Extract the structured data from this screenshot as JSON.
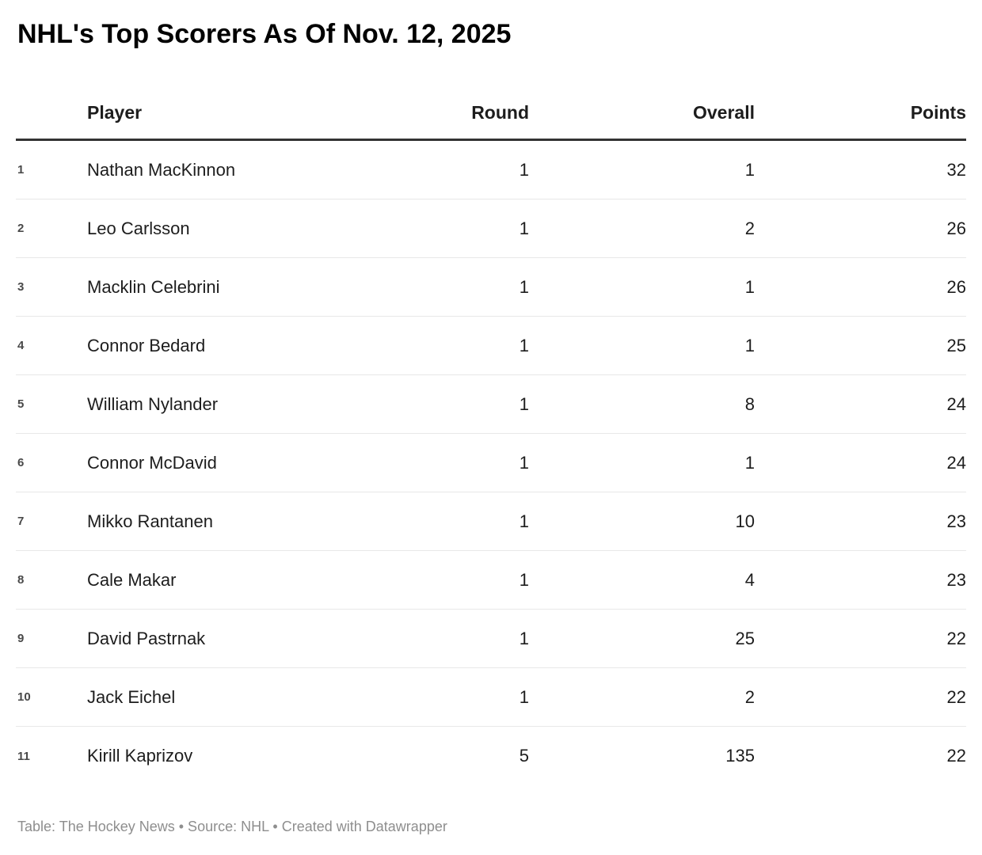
{
  "title": "NHL's Top Scorers As Of Nov. 12, 2025",
  "chart_data": {
    "type": "table",
    "title": "NHL's Top Scorers As Of Nov. 12, 2025",
    "columns": {
      "rank": "",
      "player": "Player",
      "round": "Round",
      "overall": "Overall",
      "points": "Points"
    },
    "rows": [
      {
        "rank": "1",
        "player": "Nathan MacKinnon",
        "round": "1",
        "overall": "1",
        "points": "32"
      },
      {
        "rank": "2",
        "player": "Leo Carlsson",
        "round": "1",
        "overall": "2",
        "points": "26"
      },
      {
        "rank": "3",
        "player": "Macklin Celebrini",
        "round": "1",
        "overall": "1",
        "points": "26"
      },
      {
        "rank": "4",
        "player": "Connor Bedard",
        "round": "1",
        "overall": "1",
        "points": "25"
      },
      {
        "rank": "5",
        "player": "William Nylander",
        "round": "1",
        "overall": "8",
        "points": "24"
      },
      {
        "rank": "6",
        "player": "Connor McDavid",
        "round": "1",
        "overall": "1",
        "points": "24"
      },
      {
        "rank": "7",
        "player": "Mikko Rantanen",
        "round": "1",
        "overall": "10",
        "points": "23"
      },
      {
        "rank": "8",
        "player": "Cale Makar",
        "round": "1",
        "overall": "4",
        "points": "23"
      },
      {
        "rank": "9",
        "player": "David Pastrnak",
        "round": "1",
        "overall": "25",
        "points": "22"
      },
      {
        "rank": "10",
        "player": "Jack Eichel",
        "round": "1",
        "overall": "2",
        "points": "22"
      },
      {
        "rank": "11",
        "player": "Kirill Kaprizov",
        "round": "5",
        "overall": "135",
        "points": "22"
      }
    ]
  },
  "footer": {
    "text": "Table: The Hockey News • Source: NHL • Created with Datawrapper"
  },
  "colors": {
    "background": "#ffffff",
    "title_text": "#000000",
    "body_text": "#1d1d1d",
    "rank_text": "#494949",
    "header_rule": "#333333",
    "row_divider": "#e8e8e8",
    "footer_text": "#8e8e8e"
  }
}
